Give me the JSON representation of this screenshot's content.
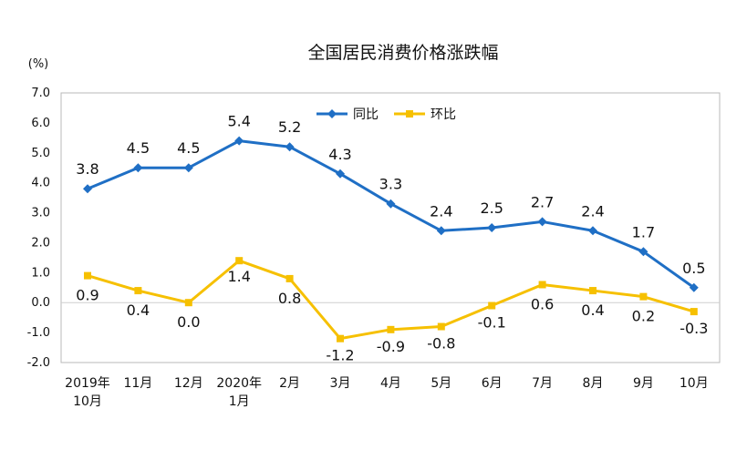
{
  "chart_data": {
    "type": "line",
    "title": "全国居民消费价格涨跌幅",
    "unit_label": "(%)",
    "categories": [
      [
        "2019年",
        "10月"
      ],
      [
        "11月"
      ],
      [
        "12月"
      ],
      [
        "2020年",
        "1月"
      ],
      [
        "2月"
      ],
      [
        "3月"
      ],
      [
        "4月"
      ],
      [
        "5月"
      ],
      [
        "6月"
      ],
      [
        "7月"
      ],
      [
        "8月"
      ],
      [
        "9月"
      ],
      [
        "10月"
      ]
    ],
    "y_ticks": [
      "7.0",
      "6.0",
      "5.0",
      "4.0",
      "3.0",
      "2.0",
      "1.0",
      "0.0",
      "-1.0",
      "-2.0"
    ],
    "ylim": [
      -2,
      7
    ],
    "legend_position": "top",
    "series": [
      {
        "name": "同比",
        "color": "#1f6fc5",
        "marker": "diamond",
        "values": [
          3.8,
          4.5,
          4.5,
          5.4,
          5.2,
          4.3,
          3.3,
          2.4,
          2.5,
          2.7,
          2.4,
          1.7,
          0.5
        ],
        "labels": [
          "3.8",
          "4.5",
          "4.5",
          "5.4",
          "5.2",
          "4.3",
          "3.3",
          "2.4",
          "2.5",
          "2.7",
          "2.4",
          "1.7",
          "0.5"
        ]
      },
      {
        "name": "环比",
        "color": "#f6c000",
        "marker": "square",
        "values": [
          0.9,
          0.4,
          0.0,
          1.4,
          0.8,
          -1.2,
          -0.9,
          -0.8,
          -0.1,
          0.6,
          0.4,
          0.2,
          -0.3
        ],
        "labels": [
          "0.9",
          "0.4",
          "0.0",
          "1.4",
          "0.8",
          "-1.2",
          "-0.9",
          "-0.8",
          "-0.1",
          "0.6",
          "0.4",
          "0.2",
          "-0.3"
        ]
      }
    ]
  }
}
